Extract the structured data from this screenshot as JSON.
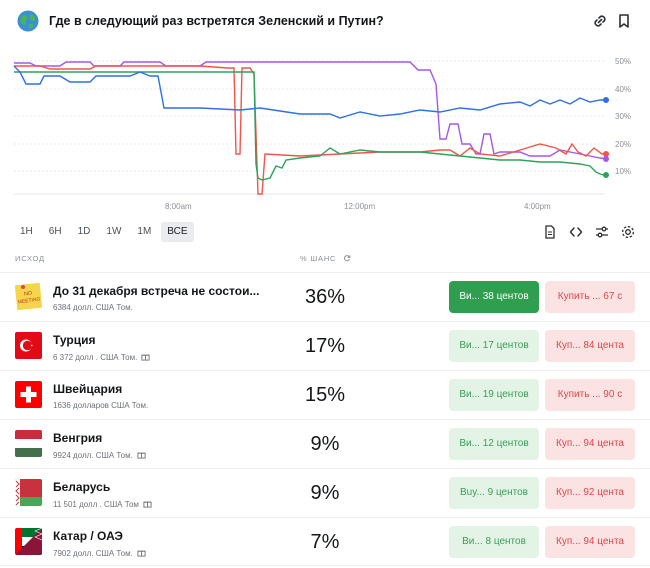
{
  "market": {
    "title": "Где в следующий раз встретятся Зеленский и Путин?",
    "icons": [
      "globe-icon",
      "link-icon",
      "bookmark-icon"
    ]
  },
  "chart_data": {
    "type": "line",
    "x_ticks": [
      "8:00am",
      "12:00pm",
      "4:00pm"
    ],
    "y_ticks": [
      "50%",
      "40%",
      "30%",
      "20%",
      "10%"
    ],
    "ylim": [
      0,
      50
    ],
    "grid": true,
    "series": [
      {
        "color": "#2f6fe8",
        "last": 36
      },
      {
        "color": "#f0554b",
        "last": 17
      },
      {
        "color": "#a259e6",
        "last": 15
      },
      {
        "color": "#2ea25c",
        "last": 9
      }
    ]
  },
  "ranges": [
    "1H",
    "6H",
    "1D",
    "1W",
    "1M",
    "ВСЕ"
  ],
  "active_range": "ВСЕ",
  "columns": {
    "outcome": "ИСХОД",
    "chance": "% ШАНС"
  },
  "outcomes": [
    {
      "name": "До 31 декабря встреча не состои...",
      "volume": "6384 долл. США Том.",
      "gift": false,
      "chance": "36%",
      "buy": "Ви... 38 центов",
      "sell": "Купить ... 67 с",
      "flag": "no-meeting"
    },
    {
      "name": "Турция",
      "volume": "6 372 долл . США Том.",
      "gift": true,
      "chance": "17%",
      "buy": "Ви... 17 центов",
      "sell": "Куп... 84 цента",
      "flag": "turkey"
    },
    {
      "name": "Швейцария",
      "volume": "1636 долларов США Том.",
      "gift": false,
      "chance": "15%",
      "buy": "Ви... 19 центов",
      "sell": "Купить ... 90 с",
      "flag": "switzerland"
    },
    {
      "name": "Венгрия",
      "volume": "9924 долл. США Том.",
      "gift": true,
      "chance": "9%",
      "buy": "Ви... 12 центов",
      "sell": "Куп... 94 цента",
      "flag": "hungary"
    },
    {
      "name": "Беларусь",
      "volume": "11 501 долл . США Том",
      "gift": true,
      "chance": "9%",
      "buy": "Buy... 9 центов",
      "sell": "Куп... 92 цента",
      "flag": "belarus"
    },
    {
      "name": "Катар / ОАЭ",
      "volume": "7902 долл. США Том.",
      "gift": true,
      "chance": "7%",
      "buy": "Ви... 8 центов",
      "sell": "Куп... 94 цента",
      "flag": "qatar-uae"
    }
  ],
  "no_meeting_sticker": "NO MEETING"
}
